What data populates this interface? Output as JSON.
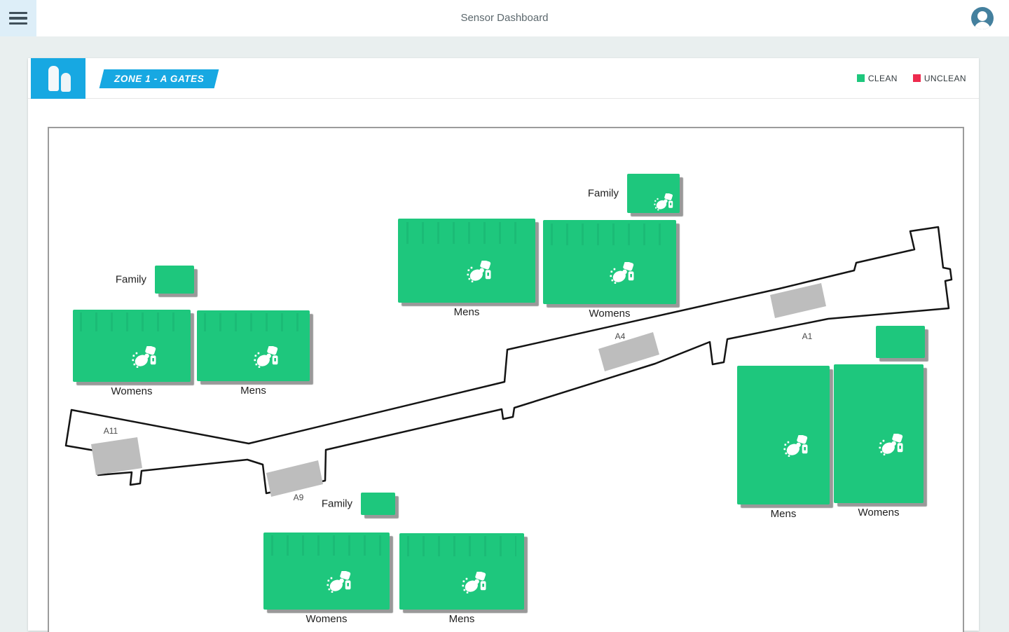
{
  "app": {
    "title": "Sensor Dashboard"
  },
  "header": {
    "zone_badge": "ZONE 1 - A GATES"
  },
  "legend": {
    "items": [
      {
        "label": "CLEAN",
        "color": "#1ec77d"
      },
      {
        "label": "UNCLEAN",
        "color": "#ee2b4e"
      }
    ]
  },
  "theme": {
    "accent_blue": "#17a8e2",
    "clean_green": "#1ec77d",
    "unclean_red": "#ee2b4e"
  },
  "map": {
    "gates": [
      {
        "label": "A11"
      },
      {
        "label": "A9"
      },
      {
        "label": "A4"
      },
      {
        "label": "A1"
      }
    ],
    "restrooms": [
      {
        "label": "Family",
        "status": "clean"
      },
      {
        "label": "Mens",
        "status": "clean"
      },
      {
        "label": "Womens",
        "status": "clean"
      },
      {
        "label": "Family",
        "status": "clean"
      },
      {
        "label": "Womens",
        "status": "clean"
      },
      {
        "label": "Mens",
        "status": "clean"
      },
      {
        "label": "Family",
        "status": "clean"
      },
      {
        "label": "Womens",
        "status": "clean"
      },
      {
        "label": "Mens",
        "status": "clean"
      },
      {
        "label": "",
        "status": "clean"
      },
      {
        "label": "Mens",
        "status": "clean"
      },
      {
        "label": "Womens",
        "status": "clean"
      }
    ]
  }
}
